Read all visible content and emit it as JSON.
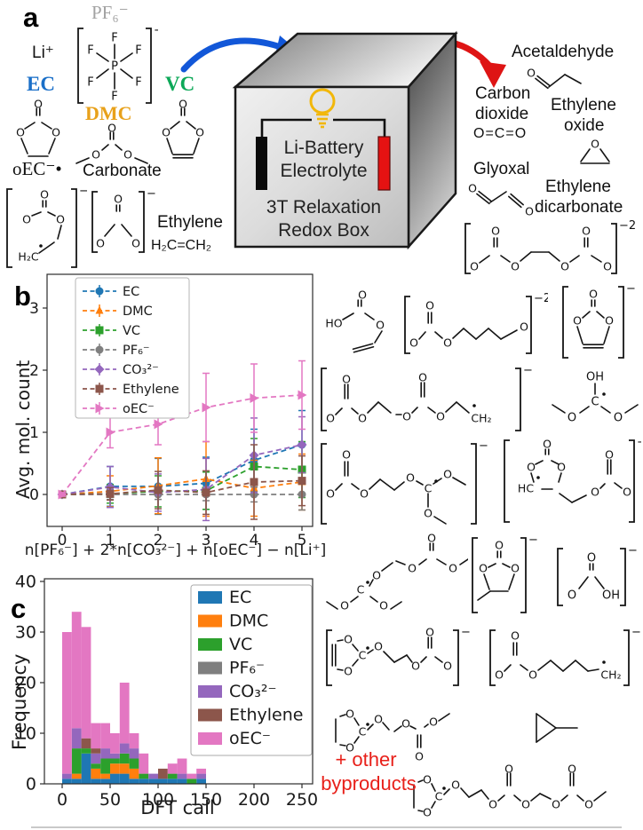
{
  "figure": {
    "panel_a_label": "a",
    "panel_b_label": "b",
    "panel_c_label": "c"
  },
  "panel_a": {
    "li": "Li⁺",
    "pf6": "PF₆⁻",
    "ec": "EC",
    "dmc": "DMC",
    "vc": "VC",
    "oec": "oEC⁻•",
    "carbonate": "Carbonate",
    "ethylene": "Ethylene",
    "ethylene_formula": "H₂C=CH₂",
    "box": {
      "line1": "Li-Battery",
      "line2": "Electrolyte",
      "line3": "3T Relaxation",
      "line4": "Redox Box"
    },
    "products": {
      "acetaldehyde": "Acetaldehyde",
      "carbon": "Carbon",
      "dioxide": "dioxide",
      "co2_formula": "O=C=O",
      "ethylene": "Ethylene",
      "oxide": "oxide",
      "glyoxal": "Glyoxal",
      "edc_line1": "Ethylene",
      "edc_line2": "dicarbonate"
    }
  },
  "byproducts_note": {
    "line1": "+ other",
    "line2": "byproducts"
  },
  "atom_symbols": {
    "O": "O",
    "HO": "HO",
    "OH": "OH",
    "C": "C",
    "HC": "HC",
    "H2C": "H₂C",
    "CH2": "CH₂",
    "F": "F",
    "P": "P"
  },
  "charges": {
    "pf6": "−",
    "oec_a": "−",
    "carbonate_a": "−2",
    "edc": "−2",
    "m2": "−2",
    "m3": "−",
    "m4": "−",
    "m6": "−",
    "m7": "−",
    "m9": "−",
    "m10": "−",
    "m11": "−",
    "m12": "−"
  },
  "colors": {
    "ec": "#1f77b4",
    "dmc": "#ff7f0e",
    "vc": "#2ca02c",
    "pf6": "#7f7f7f",
    "co3": "#9467bd",
    "ethylene": "#8c564b",
    "oec": "#e377c2",
    "arrow_blue": "#1257d8",
    "arrow_red": "#de1414",
    "label_ec": "#1a6fc8",
    "label_vc": "#0da858",
    "label_dmc": "#e8a11b",
    "label_pf6": "#a3a3a3",
    "bulb": "#f2b70a",
    "electrode_red": "#e51212",
    "note_red": "#e8201a"
  },
  "chart_data": [
    {
      "id": "panel-b",
      "type": "line",
      "xlabel": "n[PF₆⁻] + 2*n[CO₃²⁻] + n[oEC⁻] − n[Li⁺]",
      "ylabel": "Avg. mol. count",
      "x": [
        0,
        1,
        2,
        3,
        4,
        5
      ],
      "xticks": [
        0,
        1,
        2,
        3,
        4,
        5
      ],
      "yticks": [
        0,
        1,
        2,
        3
      ],
      "xlim": [
        -0.32,
        5.32
      ],
      "ylim": [
        -0.55,
        3.55
      ],
      "grid": false,
      "legend_position": "upper left",
      "series": [
        {
          "label": "EC",
          "color": "#1f77b4",
          "marker": "circle",
          "y": [
            0,
            0.13,
            0.13,
            0.18,
            0.55,
            0.8
          ],
          "yerr": [
            0.02,
            0.32,
            0.45,
            0.42,
            0.5,
            0.55
          ]
        },
        {
          "label": "DMC",
          "color": "#ff7f0e",
          "marker": "triangle-up",
          "y": [
            0,
            0.05,
            0.14,
            0.25,
            0.1,
            0.2
          ],
          "yerr": [
            0.02,
            0.25,
            0.45,
            0.6,
            0.45,
            0.45
          ]
        },
        {
          "label": "VC",
          "color": "#2ca02c",
          "marker": "square",
          "y": [
            0,
            0.01,
            0.05,
            0.06,
            0.45,
            0.4
          ],
          "yerr": [
            0.02,
            0.15,
            0.25,
            0.3,
            0.45,
            0.45
          ]
        },
        {
          "label": "PF₆⁻",
          "color": "#7f7f7f",
          "marker": "circle",
          "y": [
            0,
            0.0,
            0.0,
            0.0,
            0.0,
            0.0
          ],
          "yerr": [
            0.0,
            0.08,
            0.08,
            0.1,
            0.12,
            0.25
          ]
        },
        {
          "label": "CO₃²⁻",
          "color": "#9467bd",
          "marker": "diamond",
          "y": [
            0,
            0.12,
            0.03,
            0.08,
            0.63,
            0.8
          ],
          "yerr": [
            0.02,
            0.33,
            0.3,
            0.5,
            0.6,
            0.45
          ]
        },
        {
          "label": "Ethylene",
          "color": "#8c564b",
          "marker": "square",
          "y": [
            0,
            0.01,
            0.07,
            0.03,
            0.2,
            0.22
          ],
          "yerr": [
            0.02,
            0.1,
            0.3,
            0.35,
            0.6,
            0.4
          ]
        },
        {
          "label": "oEC⁻",
          "color": "#e377c2",
          "marker": "triangle-right",
          "y": [
            0,
            1.0,
            1.13,
            1.4,
            1.55,
            1.6
          ],
          "yerr": [
            0.03,
            0.25,
            0.33,
            0.55,
            0.55,
            0.55
          ]
        }
      ]
    },
    {
      "id": "panel-c",
      "type": "stacked-bar-histogram",
      "xlabel": "DFT call",
      "ylabel": "Frequency",
      "bin_start": 0,
      "bin_width": 10,
      "xticks": [
        0,
        50,
        100,
        150,
        200,
        250
      ],
      "yticks": [
        0,
        10,
        20,
        30,
        40
      ],
      "xlim": [
        0,
        260
      ],
      "ylim": [
        0,
        40
      ],
      "legend_position": "upper right",
      "series": [
        {
          "label": "EC",
          "color": "#1f77b4",
          "values": [
            1,
            1,
            6,
            1,
            1,
            2,
            2,
            1,
            1,
            1,
            1,
            1,
            1,
            0,
            1
          ]
        },
        {
          "label": "DMC",
          "color": "#ff7f0e",
          "values": [
            0,
            1,
            0,
            2,
            1,
            2,
            2,
            2,
            0,
            0,
            0,
            0,
            0,
            0,
            0
          ]
        },
        {
          "label": "VC",
          "color": "#2ca02c",
          "values": [
            0,
            5,
            1,
            1,
            3,
            1,
            2,
            2,
            1,
            0,
            0,
            1,
            0,
            1,
            0
          ]
        },
        {
          "label": "PF₆⁻",
          "color": "#7f7f7f",
          "values": [
            0,
            0,
            0,
            0,
            0,
            0,
            0,
            0,
            0,
            0,
            0,
            0,
            0,
            0,
            0
          ]
        },
        {
          "label": "CO₃²⁻",
          "color": "#9467bd",
          "values": [
            1,
            4,
            0,
            2,
            2,
            1,
            2,
            2,
            0,
            1,
            0,
            0,
            1,
            0,
            1
          ]
        },
        {
          "label": "Ethylene",
          "color": "#8c564b",
          "values": [
            0,
            0,
            2,
            1,
            0,
            0,
            0,
            0,
            0,
            0,
            2,
            0,
            0,
            0,
            0
          ]
        },
        {
          "label": "oEC⁻",
          "color": "#e377c2",
          "values": [
            28,
            23,
            22,
            5,
            5,
            4,
            12,
            3,
            4,
            0,
            0,
            2,
            3,
            1,
            1
          ]
        }
      ]
    }
  ]
}
